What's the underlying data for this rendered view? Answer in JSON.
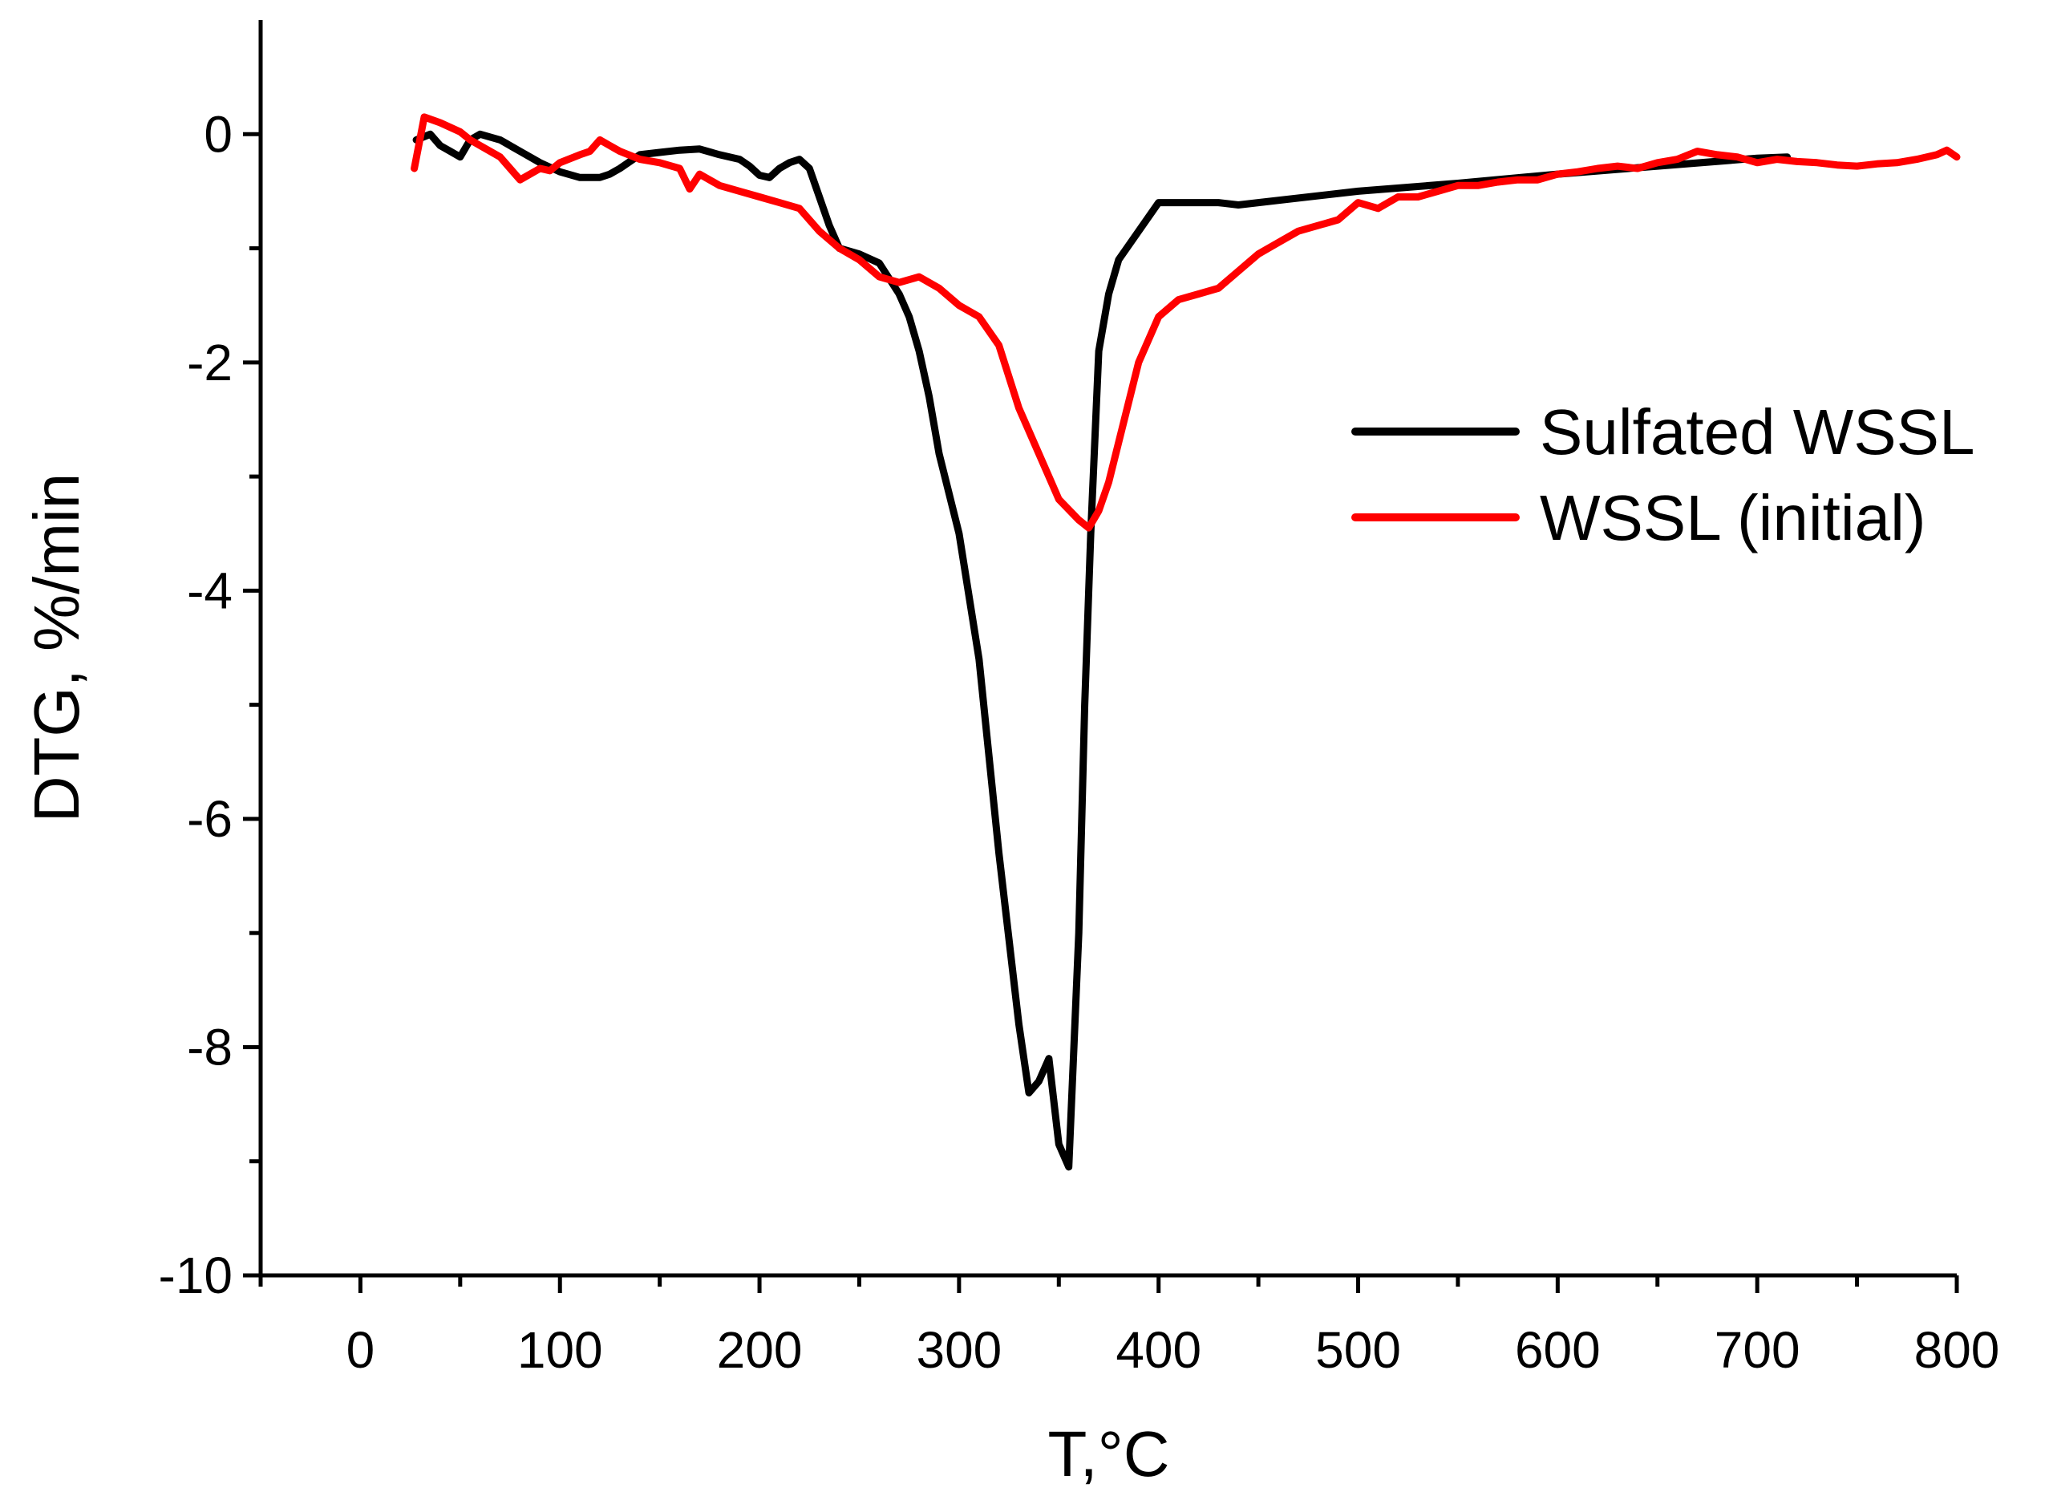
{
  "chart_data": {
    "type": "line",
    "title": "",
    "xlabel": "T,°C",
    "ylabel": "DTG, %/min",
    "xlim": [
      -50,
      800
    ],
    "ylim": [
      -10,
      1
    ],
    "xticks": [
      0,
      100,
      200,
      300,
      400,
      500,
      600,
      700,
      800
    ],
    "xtick_labels": [
      "0",
      "100",
      "200",
      "300",
      "400",
      "500",
      "600",
      "700",
      "800"
    ],
    "yticks": [
      0,
      -2,
      -4,
      -6,
      -8,
      -10
    ],
    "ytick_labels": [
      "0",
      "-2",
      "-4",
      "-6",
      "-8",
      "-10"
    ],
    "legend_position": "right",
    "series": [
      {
        "name": "Sulfated WSSL",
        "color": "#000000",
        "points": [
          [
            28,
            -0.05
          ],
          [
            35,
            0.0
          ],
          [
            40,
            -0.1
          ],
          [
            45,
            -0.15
          ],
          [
            50,
            -0.2
          ],
          [
            55,
            -0.05
          ],
          [
            60,
            0.0
          ],
          [
            70,
            -0.05
          ],
          [
            80,
            -0.15
          ],
          [
            90,
            -0.25
          ],
          [
            100,
            -0.33
          ],
          [
            110,
            -0.38
          ],
          [
            120,
            -0.38
          ],
          [
            125,
            -0.35
          ],
          [
            130,
            -0.3
          ],
          [
            140,
            -0.18
          ],
          [
            150,
            -0.16
          ],
          [
            160,
            -0.14
          ],
          [
            170,
            -0.13
          ],
          [
            180,
            -0.18
          ],
          [
            190,
            -0.22
          ],
          [
            195,
            -0.28
          ],
          [
            200,
            -0.36
          ],
          [
            205,
            -0.38
          ],
          [
            210,
            -0.3
          ],
          [
            215,
            -0.25
          ],
          [
            220,
            -0.22
          ],
          [
            225,
            -0.3
          ],
          [
            230,
            -0.55
          ],
          [
            235,
            -0.8
          ],
          [
            240,
            -1.0
          ],
          [
            250,
            -1.05
          ],
          [
            260,
            -1.13
          ],
          [
            270,
            -1.4
          ],
          [
            275,
            -1.6
          ],
          [
            280,
            -1.9
          ],
          [
            285,
            -2.3
          ],
          [
            290,
            -2.8
          ],
          [
            300,
            -3.5
          ],
          [
            310,
            -4.6
          ],
          [
            320,
            -6.3
          ],
          [
            330,
            -7.8
          ],
          [
            335,
            -8.4
          ],
          [
            340,
            -8.3
          ],
          [
            345,
            -8.1
          ],
          [
            350,
            -8.85
          ],
          [
            355,
            -9.05
          ],
          [
            360,
            -7.0
          ],
          [
            363,
            -5.0
          ],
          [
            366,
            -3.5
          ],
          [
            370,
            -1.9
          ],
          [
            375,
            -1.4
          ],
          [
            380,
            -1.1
          ],
          [
            390,
            -0.85
          ],
          [
            400,
            -0.6
          ],
          [
            410,
            -0.6
          ],
          [
            420,
            -0.6
          ],
          [
            430,
            -0.6
          ],
          [
            440,
            -0.62
          ],
          [
            450,
            -0.6
          ],
          [
            500,
            -0.5
          ],
          [
            550,
            -0.43
          ],
          [
            600,
            -0.35
          ],
          [
            650,
            -0.28
          ],
          [
            700,
            -0.21
          ],
          [
            715,
            -0.2
          ]
        ]
      },
      {
        "name": "WSSL (initial)",
        "color": "#ff0000",
        "points": [
          [
            27,
            -0.3
          ],
          [
            32,
            0.15
          ],
          [
            40,
            0.1
          ],
          [
            50,
            0.02
          ],
          [
            55,
            -0.05
          ],
          [
            60,
            -0.1
          ],
          [
            70,
            -0.2
          ],
          [
            80,
            -0.4
          ],
          [
            90,
            -0.3
          ],
          [
            95,
            -0.32
          ],
          [
            100,
            -0.25
          ],
          [
            110,
            -0.18
          ],
          [
            115,
            -0.15
          ],
          [
            120,
            -0.05
          ],
          [
            125,
            -0.1
          ],
          [
            130,
            -0.15
          ],
          [
            140,
            -0.22
          ],
          [
            150,
            -0.25
          ],
          [
            160,
            -0.3
          ],
          [
            165,
            -0.48
          ],
          [
            170,
            -0.35
          ],
          [
            180,
            -0.45
          ],
          [
            190,
            -0.5
          ],
          [
            200,
            -0.55
          ],
          [
            210,
            -0.6
          ],
          [
            220,
            -0.65
          ],
          [
            230,
            -0.85
          ],
          [
            240,
            -1.0
          ],
          [
            250,
            -1.1
          ],
          [
            260,
            -1.25
          ],
          [
            270,
            -1.3
          ],
          [
            280,
            -1.25
          ],
          [
            290,
            -1.35
          ],
          [
            300,
            -1.5
          ],
          [
            310,
            -1.6
          ],
          [
            320,
            -1.85
          ],
          [
            330,
            -2.4
          ],
          [
            340,
            -2.8
          ],
          [
            345,
            -3.0
          ],
          [
            350,
            -3.2
          ],
          [
            360,
            -3.38
          ],
          [
            365,
            -3.45
          ],
          [
            370,
            -3.3
          ],
          [
            375,
            -3.05
          ],
          [
            380,
            -2.7
          ],
          [
            390,
            -2.0
          ],
          [
            400,
            -1.6
          ],
          [
            410,
            -1.45
          ],
          [
            420,
            -1.4
          ],
          [
            430,
            -1.35
          ],
          [
            440,
            -1.2
          ],
          [
            450,
            -1.05
          ],
          [
            460,
            -0.95
          ],
          [
            470,
            -0.85
          ],
          [
            480,
            -0.8
          ],
          [
            490,
            -0.75
          ],
          [
            500,
            -0.6
          ],
          [
            510,
            -0.65
          ],
          [
            520,
            -0.55
          ],
          [
            530,
            -0.55
          ],
          [
            540,
            -0.5
          ],
          [
            550,
            -0.45
          ],
          [
            560,
            -0.45
          ],
          [
            570,
            -0.42
          ],
          [
            580,
            -0.4
          ],
          [
            590,
            -0.4
          ],
          [
            600,
            -0.35
          ],
          [
            610,
            -0.33
          ],
          [
            620,
            -0.3
          ],
          [
            630,
            -0.28
          ],
          [
            640,
            -0.3
          ],
          [
            650,
            -0.25
          ],
          [
            660,
            -0.22
          ],
          [
            670,
            -0.15
          ],
          [
            680,
            -0.18
          ],
          [
            690,
            -0.2
          ],
          [
            700,
            -0.25
          ],
          [
            710,
            -0.22
          ],
          [
            720,
            -0.24
          ],
          [
            730,
            -0.25
          ],
          [
            740,
            -0.27
          ],
          [
            750,
            -0.28
          ],
          [
            760,
            -0.26
          ],
          [
            770,
            -0.25
          ],
          [
            780,
            -0.22
          ],
          [
            790,
            -0.18
          ],
          [
            795,
            -0.14
          ],
          [
            800,
            -0.2
          ]
        ]
      }
    ]
  }
}
